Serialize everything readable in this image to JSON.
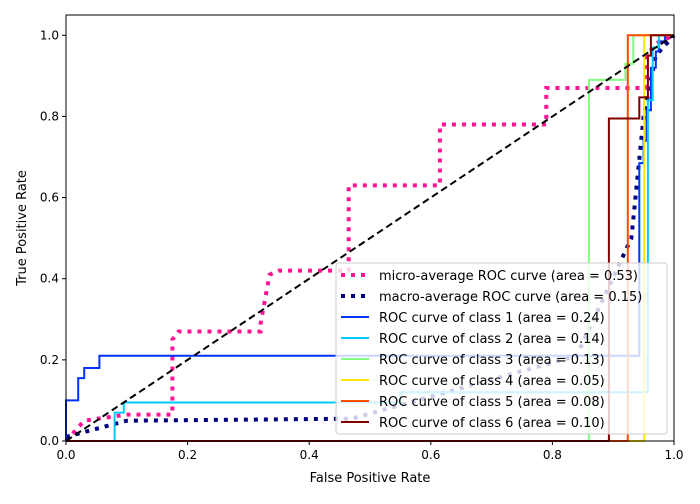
{
  "chart_data": {
    "type": "line",
    "title": "",
    "xlabel": "False Positive Rate",
    "ylabel": "True Positive Rate",
    "xlim": [
      0,
      1.0
    ],
    "ylim": [
      0,
      1.05
    ],
    "xticks": [
      "0.0",
      "0.2",
      "0.4",
      "0.6",
      "0.8",
      "1.0"
    ],
    "yticks": [
      "0.0",
      "0.2",
      "0.4",
      "0.6",
      "0.8",
      "1.0"
    ],
    "legend_position": "lower-right",
    "series": [
      {
        "name": "micro-average ROC curve (area = 0.53)",
        "color": "#ff1493",
        "style": "dotted",
        "x": [
          0,
          0.03,
          0.1,
          0.175,
          0.175,
          0.185,
          0.32,
          0.32,
          0.33,
          0.335,
          0.35,
          0.465,
          0.465,
          0.615,
          0.615,
          0.79,
          0.79,
          0.955,
          0.955,
          0.97,
          1
        ],
        "y": [
          0,
          0.05,
          0.065,
          0.065,
          0.25,
          0.27,
          0.27,
          0.29,
          0.37,
          0.41,
          0.42,
          0.42,
          0.63,
          0.63,
          0.78,
          0.78,
          0.87,
          0.87,
          0.95,
          0.98,
          1
        ]
      },
      {
        "name": "macro-average ROC curve (area = 0.15)",
        "color": "#000080",
        "style": "dotted",
        "x": [
          0,
          0.05,
          0.1,
          0.47,
          0.84,
          0.93,
          0.95,
          0.97,
          1
        ],
        "y": [
          0.01,
          0.03,
          0.05,
          0.055,
          0.21,
          0.5,
          0.8,
          0.95,
          1
        ]
      },
      {
        "name": "ROC curve of class 1 (area = 0.24)",
        "color": "#0033ff",
        "style": "solid",
        "x": [
          0,
          0,
          0.02,
          0.02,
          0.03,
          0.03,
          0.055,
          0.055,
          0.943,
          0.943,
          0.95,
          0.95,
          0.955,
          0.955,
          0.962,
          0.962,
          0.97,
          0.97,
          0.975,
          0.975,
          0.985,
          0.985,
          1
        ],
        "y": [
          0,
          0.1,
          0.1,
          0.155,
          0.155,
          0.18,
          0.18,
          0.21,
          0.21,
          0.685,
          0.685,
          0.74,
          0.74,
          0.815,
          0.815,
          0.92,
          0.92,
          0.96,
          0.96,
          0.985,
          0.985,
          1,
          1
        ]
      },
      {
        "name": "ROC curve of class 2 (area = 0.14)",
        "color": "#00ccff",
        "style": "solid",
        "x": [
          0,
          0.08,
          0.08,
          0.095,
          0.095,
          0.55,
          0.55,
          0.957,
          0.957,
          0.965,
          0.965,
          0.975,
          0.975,
          1
        ],
        "y": [
          0,
          0,
          0.07,
          0.07,
          0.095,
          0.095,
          0.12,
          0.12,
          0.84,
          0.84,
          0.97,
          0.97,
          1,
          1
        ]
      },
      {
        "name": "ROC curve of class 3 (area = 0.13)",
        "color": "#80ff80",
        "style": "solid",
        "x": [
          0,
          0.86,
          0.86,
          0.92,
          0.92,
          0.933,
          0.933,
          1
        ],
        "y": [
          0,
          0,
          0.89,
          0.89,
          0.93,
          0.93,
          1,
          1
        ]
      },
      {
        "name": "ROC curve of class 4 (area = 0.05)",
        "color": "#ffe600",
        "style": "solid",
        "x": [
          0,
          0.951,
          0.951,
          1
        ],
        "y": [
          0,
          0,
          1,
          1
        ]
      },
      {
        "name": "ROC curve of class 5 (area = 0.08)",
        "color": "#ff4a00",
        "style": "solid",
        "x": [
          0,
          0.924,
          0.924,
          1
        ],
        "y": [
          0,
          0,
          1,
          1
        ]
      },
      {
        "name": "ROC curve of class 6 (area = 0.10)",
        "color": "#800000",
        "style": "solid",
        "x": [
          0,
          0.893,
          0.893,
          0.943,
          0.943,
          0.957,
          0.957,
          0.962,
          0.962,
          1
        ],
        "y": [
          0,
          0,
          0.795,
          0.795,
          0.847,
          0.847,
          0.95,
          0.95,
          1,
          1
        ]
      },
      {
        "name": "chance",
        "color": "#000000",
        "style": "dashed",
        "legend": false,
        "x": [
          0,
          1
        ],
        "y": [
          0,
          1
        ]
      }
    ]
  }
}
